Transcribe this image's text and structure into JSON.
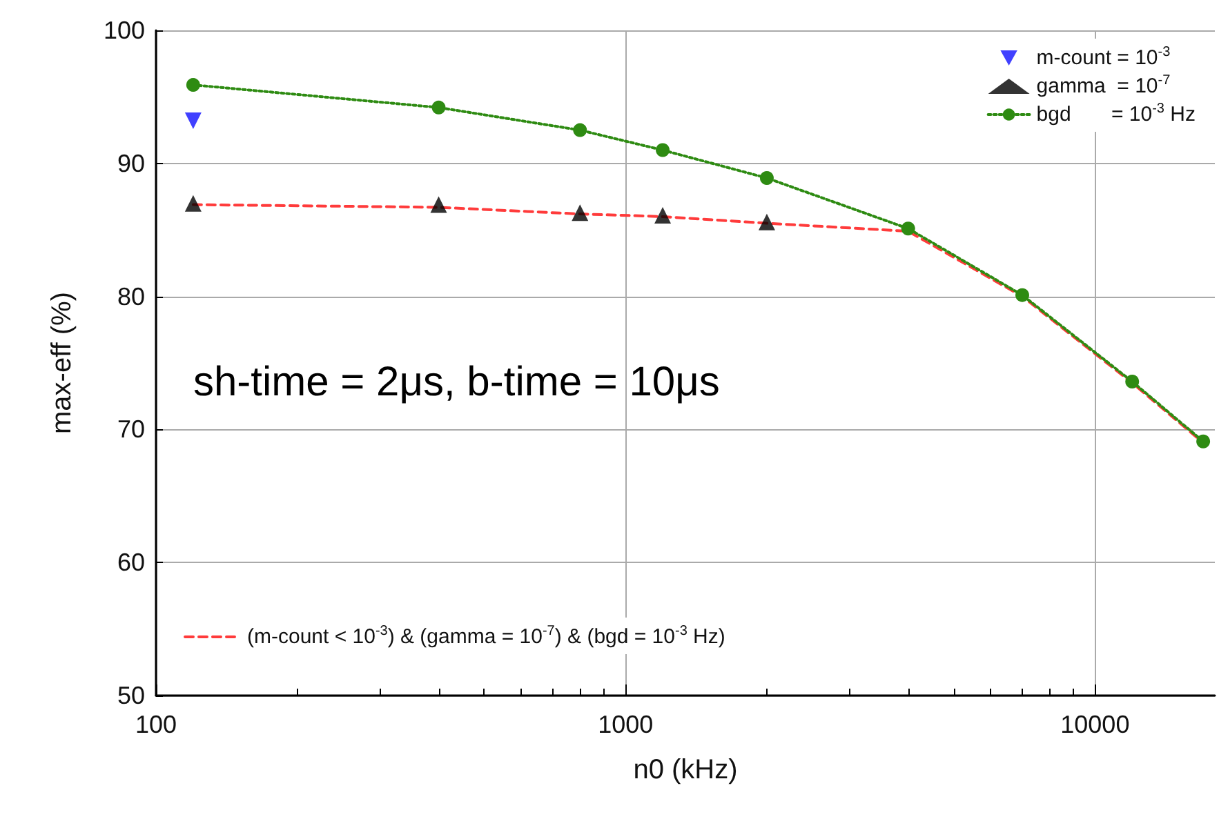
{
  "chart_data": {
    "type": "line",
    "xlabel": "n0 (kHz)",
    "ylabel": "max-eff (%)",
    "log": "x",
    "xlim": [
      100,
      18000
    ],
    "ylim": [
      50,
      100
    ],
    "xticks": [
      100,
      {
        "value": 200,
        "label": null
      },
      {
        "value": 300,
        "label": null
      },
      {
        "value": 400,
        "label": null
      },
      {
        "value": 500,
        "label": null
      },
      {
        "value": 600,
        "label": null
      },
      {
        "value": 700,
        "label": null
      },
      {
        "value": 800,
        "label": null
      },
      {
        "value": 900,
        "label": null
      },
      1000,
      {
        "value": 2000,
        "label": null
      },
      {
        "value": 3000,
        "label": null
      },
      {
        "value": 4000,
        "label": null
      },
      {
        "value": 5000,
        "label": null
      },
      {
        "value": 6000,
        "label": null
      },
      {
        "value": 7000,
        "label": null
      },
      {
        "value": 8000,
        "label": null
      },
      {
        "value": 9000,
        "label": null
      },
      10000
    ],
    "yticks": [
      50,
      60,
      70,
      80,
      90,
      100
    ],
    "grid": true,
    "legend": "top right",
    "annotations": [
      "sh-time = 2μs, b-time = 10μs"
    ],
    "series": [
      {
        "name": "(m-count < 10$^{-3}$) & (gamma = 10$^{-7}$) & (bgd = 10$^{-3}$ Hz)",
        "color": "#ff3b3b",
        "line_style": "dashed",
        "marker": "none",
        "x": [
          120,
          400,
          800,
          1200,
          2000,
          4000,
          7000,
          12000,
          17000
        ],
        "values": [
          86.9,
          86.7,
          86.2,
          86.0,
          85.5,
          84.9,
          80.0,
          73.5,
          69.0
        ]
      },
      {
        "name": "m-count = 10$^{-3}$",
        "type": "scatter",
        "color": "#1010ff",
        "marker": "triangle-down",
        "x": [
          120
        ],
        "values": [
          93.2
        ]
      },
      {
        "name": "gamma  = 10$^{-7}$",
        "type": "scatter",
        "color": "#000000",
        "marker": "triangle",
        "x": [
          120,
          400,
          800,
          1200,
          2000
        ],
        "values": [
          87.0,
          86.9,
          86.3,
          86.1,
          85.6
        ]
      },
      {
        "name": "bgd       = 10$^{-3}$ Hz",
        "color": "#2e8b12",
        "line_style": "dotted",
        "marker": "circle",
        "x": [
          120,
          400,
          800,
          1200,
          2000,
          4000,
          7000,
          12000,
          17000
        ],
        "values": [
          95.9,
          94.2,
          92.5,
          91.0,
          88.9,
          85.1,
          80.1,
          73.6,
          69.1
        ]
      }
    ]
  }
}
